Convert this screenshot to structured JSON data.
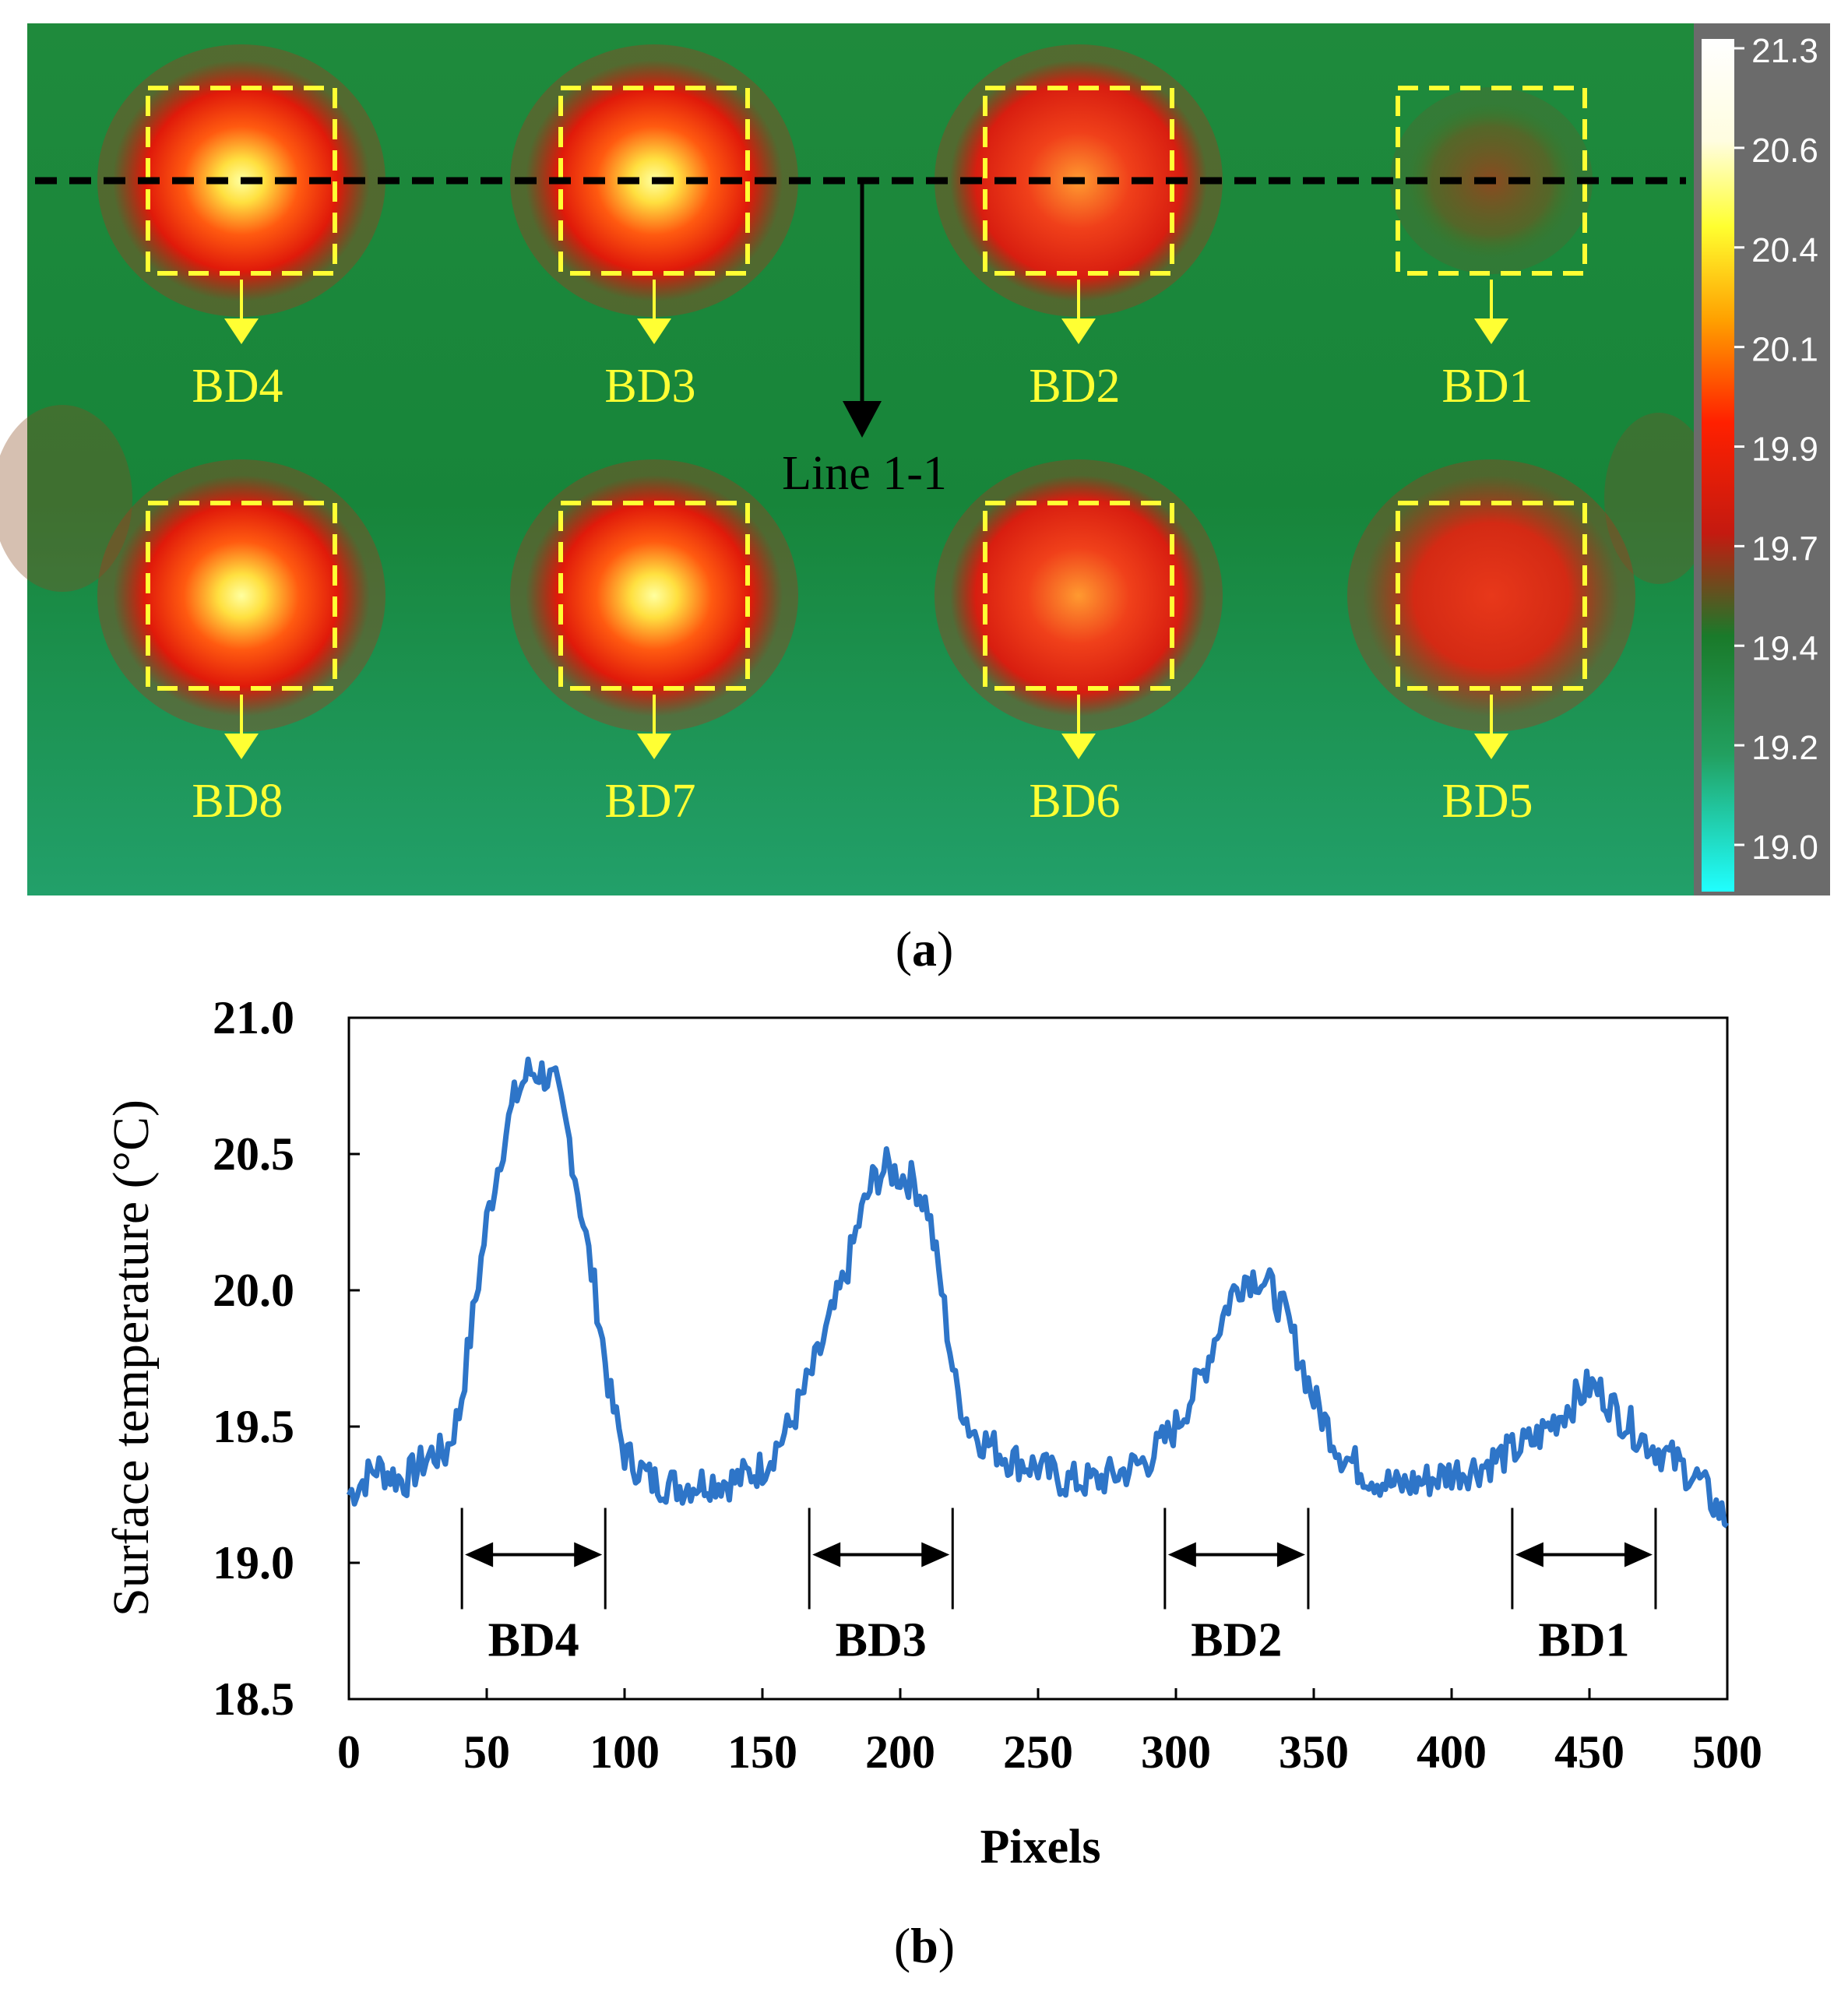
{
  "chart_data": [
    {
      "type": "heatmap",
      "panel_label": "a",
      "colorbar": {
        "ticks": [
          "21.3",
          "20.6",
          "20.4",
          "20.1",
          "19.9",
          "19.7",
          "19.4",
          "19.2",
          "19.0"
        ],
        "unit": "°C"
      },
      "line_label": "Line 1-1",
      "defects": [
        {
          "label": "BD4",
          "row": 0,
          "col": 0,
          "peak_temp": 20.8
        },
        {
          "label": "BD3",
          "row": 0,
          "col": 1,
          "peak_temp": 20.5
        },
        {
          "label": "BD2",
          "row": 0,
          "col": 2,
          "peak_temp": 20.1
        },
        {
          "label": "BD1",
          "row": 0,
          "col": 3,
          "peak_temp": 19.65
        },
        {
          "label": "BD8",
          "row": 1,
          "col": 0,
          "peak_temp": 20.9
        },
        {
          "label": "BD7",
          "row": 1,
          "col": 1,
          "peak_temp": 20.75
        },
        {
          "label": "BD6",
          "row": 1,
          "col": 2,
          "peak_temp": 20.3
        },
        {
          "label": "BD5",
          "row": 1,
          "col": 3,
          "peak_temp": 19.9
        }
      ]
    },
    {
      "type": "line",
      "panel_label": "b",
      "xlabel": "Pixels",
      "ylabel": "Surface temperature  (°C)",
      "xlim": [
        0,
        500
      ],
      "ylim": [
        18.5,
        21.0
      ],
      "xticks": [
        0,
        50,
        100,
        150,
        200,
        250,
        300,
        350,
        400,
        450,
        500
      ],
      "yticks": [
        "18.5",
        "19.0",
        "19.5",
        "20.0",
        "20.5",
        "21.0"
      ],
      "series_color": "#2e75c8",
      "x": [
        0,
        10,
        20,
        30,
        35,
        40,
        45,
        50,
        55,
        60,
        65,
        70,
        75,
        80,
        85,
        90,
        95,
        100,
        110,
        120,
        130,
        140,
        150,
        160,
        170,
        180,
        185,
        190,
        195,
        200,
        205,
        210,
        215,
        220,
        225,
        230,
        240,
        250,
        260,
        270,
        280,
        290,
        300,
        310,
        315,
        320,
        325,
        330,
        335,
        340,
        345,
        350,
        360,
        370,
        380,
        390,
        400,
        410,
        420,
        430,
        440,
        450,
        455,
        460,
        470,
        480,
        490,
        495,
        500
      ],
      "y": [
        19.25,
        19.35,
        19.3,
        19.4,
        19.4,
        19.55,
        19.9,
        20.25,
        20.5,
        20.7,
        20.8,
        20.8,
        20.75,
        20.55,
        20.25,
        19.95,
        19.6,
        19.4,
        19.3,
        19.28,
        19.3,
        19.3,
        19.35,
        19.5,
        19.75,
        20.05,
        20.25,
        20.4,
        20.45,
        20.42,
        20.4,
        20.3,
        20.0,
        19.65,
        19.5,
        19.45,
        19.38,
        19.35,
        19.3,
        19.3,
        19.33,
        19.38,
        19.5,
        19.7,
        19.85,
        19.98,
        20.05,
        20.05,
        20.0,
        19.9,
        19.75,
        19.6,
        19.4,
        19.32,
        19.28,
        19.3,
        19.33,
        19.35,
        19.4,
        19.45,
        19.55,
        19.65,
        19.62,
        19.55,
        19.45,
        19.38,
        19.3,
        19.22,
        19.15
      ],
      "annotations": [
        {
          "label": "BD4",
          "x_start": 41,
          "x_end": 93
        },
        {
          "label": "BD3",
          "x_start": 167,
          "x_end": 219
        },
        {
          "label": "BD2",
          "x_start": 296,
          "x_end": 348
        },
        {
          "label": "BD1",
          "x_start": 422,
          "x_end": 474
        }
      ]
    }
  ]
}
